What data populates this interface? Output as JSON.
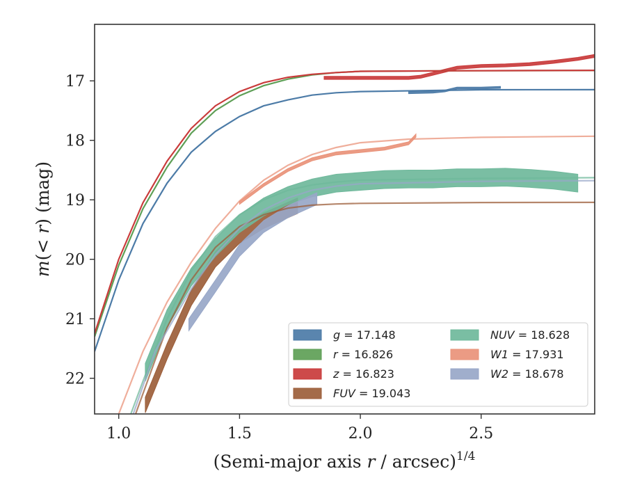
{
  "chart_data": {
    "type": "line",
    "title": "",
    "xlabel": "(Semi-major axis r / arcsec)",
    "xlabel_parts": {
      "prefix": "(Semi-major axis ",
      "var": "r",
      "suffix": " / arcsec)",
      "exponent": "1/4"
    },
    "ylabel_parts": {
      "m": "m",
      "lt": "(< ",
      "r": "r",
      "close": ")",
      "unit": " (mag)"
    },
    "xlim": [
      0.9,
      2.97
    ],
    "ylim": [
      22.6,
      16.05
    ],
    "y_inverted": true,
    "grid": false,
    "legend_position": "lower-right",
    "x_ticks": [
      {
        "value": 1.0,
        "label": "1.0"
      },
      {
        "value": 1.5,
        "label": "1.5"
      },
      {
        "value": 2.0,
        "label": "2.0"
      },
      {
        "value": 2.5,
        "label": "2.5"
      }
    ],
    "y_ticks": [
      {
        "value": 17,
        "label": "17"
      },
      {
        "value": 18,
        "label": "18"
      },
      {
        "value": 19,
        "label": "19"
      },
      {
        "value": 20,
        "label": "20"
      },
      {
        "value": 21,
        "label": "21"
      },
      {
        "value": 22,
        "label": "22"
      }
    ],
    "series": [
      {
        "name": "g",
        "band": "g",
        "value": "17.148",
        "italic": true,
        "color": "#4c7ba7",
        "model": [
          [
            0.9,
            21.55
          ],
          [
            1.0,
            20.35
          ],
          [
            1.1,
            19.4
          ],
          [
            1.2,
            18.72
          ],
          [
            1.3,
            18.2
          ],
          [
            1.4,
            17.85
          ],
          [
            1.5,
            17.6
          ],
          [
            1.6,
            17.42
          ],
          [
            1.7,
            17.32
          ],
          [
            1.8,
            17.24
          ],
          [
            1.9,
            17.2
          ],
          [
            2.0,
            17.18
          ],
          [
            2.5,
            17.15
          ],
          [
            2.97,
            17.148
          ]
        ],
        "observed": [
          [
            2.2,
            17.2
          ],
          [
            2.3,
            17.19
          ],
          [
            2.35,
            17.17
          ],
          [
            2.4,
            17.12
          ],
          [
            2.5,
            17.12
          ],
          [
            2.58,
            17.11
          ]
        ],
        "band_width": 0.03
      },
      {
        "name": "r",
        "band": "r",
        "value": "16.826",
        "italic": true,
        "color": "#5e9f56",
        "model": [
          [
            0.9,
            21.3
          ],
          [
            1.0,
            20.1
          ],
          [
            1.1,
            19.15
          ],
          [
            1.2,
            18.45
          ],
          [
            1.3,
            17.88
          ],
          [
            1.4,
            17.5
          ],
          [
            1.5,
            17.25
          ],
          [
            1.6,
            17.08
          ],
          [
            1.7,
            16.97
          ],
          [
            1.8,
            16.9
          ],
          [
            1.9,
            16.86
          ],
          [
            2.0,
            16.84
          ],
          [
            2.4,
            16.83
          ],
          [
            2.97,
            16.826
          ]
        ],
        "observed": [],
        "band_width": 0.03
      },
      {
        "name": "z",
        "band": "z",
        "value": "16.823",
        "italic": true,
        "color": "#c93b3b",
        "model": [
          [
            0.9,
            21.25
          ],
          [
            1.0,
            20.0
          ],
          [
            1.1,
            19.05
          ],
          [
            1.2,
            18.35
          ],
          [
            1.3,
            17.8
          ],
          [
            1.4,
            17.42
          ],
          [
            1.5,
            17.18
          ],
          [
            1.6,
            17.03
          ],
          [
            1.7,
            16.94
          ],
          [
            1.8,
            16.89
          ],
          [
            1.9,
            16.86
          ],
          [
            2.0,
            16.84
          ],
          [
            2.4,
            16.83
          ],
          [
            2.97,
            16.823
          ]
        ],
        "observed": [
          [
            1.85,
            16.95
          ],
          [
            2.0,
            16.95
          ],
          [
            2.1,
            16.95
          ],
          [
            2.2,
            16.95
          ],
          [
            2.25,
            16.93
          ],
          [
            2.3,
            16.88
          ],
          [
            2.4,
            16.78
          ],
          [
            2.5,
            16.75
          ],
          [
            2.6,
            16.74
          ],
          [
            2.7,
            16.72
          ],
          [
            2.8,
            16.68
          ],
          [
            2.9,
            16.63
          ],
          [
            2.97,
            16.58
          ]
        ],
        "band_width": 0.05
      },
      {
        "name": "FUV",
        "band": "FUV",
        "value": "19.043",
        "italic": true,
        "color": "#9c5e3a",
        "model": [
          [
            1.07,
            22.6
          ],
          [
            1.15,
            21.7
          ],
          [
            1.2,
            21.15
          ],
          [
            1.3,
            20.35
          ],
          [
            1.4,
            19.8
          ],
          [
            1.5,
            19.45
          ],
          [
            1.6,
            19.25
          ],
          [
            1.7,
            19.14
          ],
          [
            1.8,
            19.09
          ],
          [
            1.9,
            19.07
          ],
          [
            2.0,
            19.06
          ],
          [
            2.5,
            19.045
          ],
          [
            2.97,
            19.043
          ]
        ],
        "observed": [
          [
            1.11,
            22.45
          ],
          [
            1.2,
            21.55
          ],
          [
            1.3,
            20.65
          ],
          [
            1.4,
            20.0
          ],
          [
            1.5,
            19.6
          ],
          [
            1.6,
            19.35
          ],
          [
            1.74,
            19.1
          ]
        ],
        "band_width": 0.26
      },
      {
        "name": "NUV",
        "band": "NUV",
        "value": "18.628",
        "italic": true,
        "color": "#6fb89b",
        "model": [
          [
            1.05,
            22.6
          ],
          [
            1.1,
            22.05
          ],
          [
            1.2,
            21.0
          ],
          [
            1.3,
            20.2
          ],
          [
            1.4,
            19.62
          ],
          [
            1.5,
            19.25
          ],
          [
            1.6,
            19.0
          ],
          [
            1.7,
            18.84
          ],
          [
            1.8,
            18.75
          ],
          [
            1.9,
            18.7
          ],
          [
            2.0,
            18.67
          ],
          [
            2.5,
            18.64
          ],
          [
            2.97,
            18.628
          ]
        ],
        "observed": [
          [
            1.11,
            21.9
          ],
          [
            1.2,
            21.0
          ],
          [
            1.3,
            20.3
          ],
          [
            1.4,
            19.8
          ],
          [
            1.5,
            19.4
          ],
          [
            1.6,
            19.12
          ],
          [
            1.7,
            18.93
          ],
          [
            1.8,
            18.8
          ],
          [
            1.9,
            18.72
          ],
          [
            2.0,
            18.69
          ],
          [
            2.1,
            18.66
          ],
          [
            2.2,
            18.65
          ],
          [
            2.3,
            18.65
          ],
          [
            2.4,
            18.63
          ],
          [
            2.5,
            18.63
          ],
          [
            2.6,
            18.62
          ],
          [
            2.7,
            18.64
          ],
          [
            2.8,
            18.67
          ],
          [
            2.9,
            18.72
          ]
        ],
        "band_width": 0.3
      },
      {
        "name": "W1",
        "band": "W1",
        "value": "17.931",
        "italic": true,
        "color": "#e9937a",
        "model": [
          [
            1.0,
            22.6
          ],
          [
            1.1,
            21.55
          ],
          [
            1.2,
            20.72
          ],
          [
            1.3,
            20.05
          ],
          [
            1.4,
            19.48
          ],
          [
            1.5,
            19.02
          ],
          [
            1.6,
            18.67
          ],
          [
            1.7,
            18.42
          ],
          [
            1.8,
            18.24
          ],
          [
            1.9,
            18.12
          ],
          [
            2.0,
            18.04
          ],
          [
            2.2,
            17.98
          ],
          [
            2.5,
            17.95
          ],
          [
            2.97,
            17.931
          ]
        ],
        "observed": [
          [
            1.5,
            19.05
          ],
          [
            1.6,
            18.75
          ],
          [
            1.7,
            18.5
          ],
          [
            1.8,
            18.32
          ],
          [
            1.9,
            18.22
          ],
          [
            2.0,
            18.18
          ],
          [
            2.1,
            18.14
          ],
          [
            2.2,
            18.05
          ],
          [
            2.23,
            17.92
          ]
        ],
        "band_width": 0.05
      },
      {
        "name": "W2",
        "band": "W2",
        "value": "18.678",
        "italic": true,
        "color": "#98a7c8",
        "model": [
          [
            1.06,
            22.6
          ],
          [
            1.15,
            21.55
          ],
          [
            1.3,
            20.5
          ],
          [
            1.4,
            19.92
          ],
          [
            1.5,
            19.48
          ],
          [
            1.6,
            19.17
          ],
          [
            1.7,
            18.97
          ],
          [
            1.8,
            18.84
          ],
          [
            1.9,
            18.77
          ],
          [
            2.0,
            18.73
          ],
          [
            2.5,
            18.69
          ],
          [
            2.97,
            18.678
          ]
        ],
        "observed": [
          [
            1.29,
            21.1
          ],
          [
            1.4,
            20.45
          ],
          [
            1.5,
            19.85
          ],
          [
            1.6,
            19.45
          ],
          [
            1.7,
            19.2
          ],
          [
            1.82,
            18.98
          ]
        ],
        "band_width": 0.2
      }
    ]
  }
}
